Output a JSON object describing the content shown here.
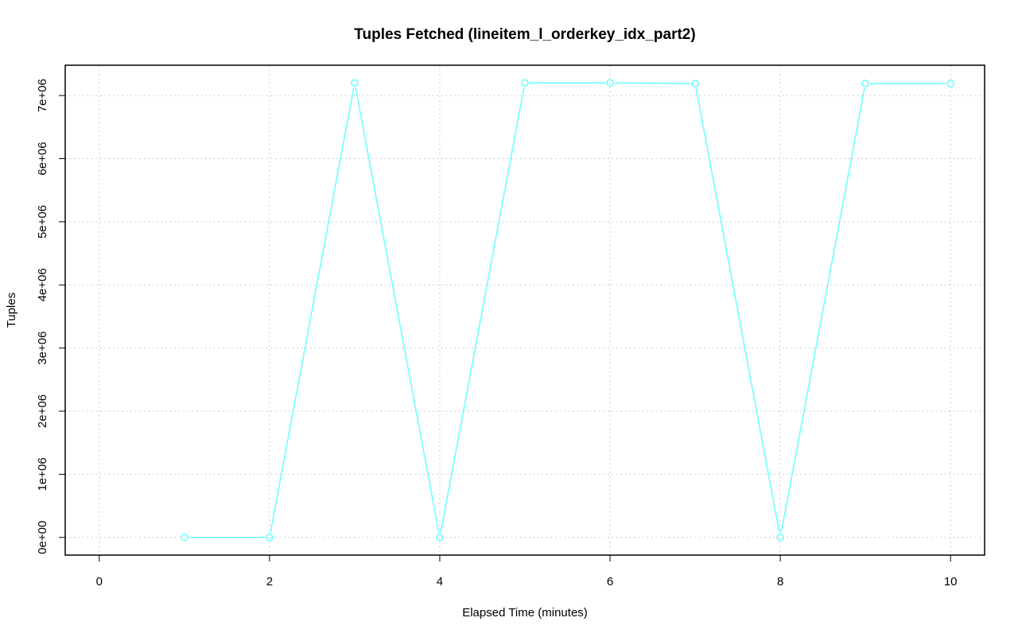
{
  "chart_data": {
    "type": "line",
    "title": "Tuples Fetched (lineitem_l_orderkey_idx_part2)",
    "xlabel": "Elapsed Time (minutes)",
    "ylabel": "Tuples",
    "xlim": [
      -0.4,
      10.4
    ],
    "ylim": [
      -280000,
      7480000
    ],
    "x_ticks": [
      0,
      2,
      4,
      6,
      8,
      10
    ],
    "x_tick_labels": [
      "0",
      "2",
      "4",
      "6",
      "8",
      "10"
    ],
    "y_ticks": [
      0,
      1000000,
      2000000,
      3000000,
      4000000,
      5000000,
      6000000,
      7000000
    ],
    "y_tick_labels": [
      "0e+00",
      "1e+06",
      "2e+06",
      "3e+06",
      "4e+06",
      "5e+06",
      "6e+06",
      "7e+06"
    ],
    "grid": true,
    "series": [
      {
        "color": "#66ffff",
        "x": [
          1,
          2,
          3,
          4,
          5,
          6,
          7,
          8,
          9,
          10
        ],
        "y": [
          0,
          0,
          7200000,
          0,
          7200000,
          7200000,
          7190000,
          0,
          7190000,
          7190000
        ]
      }
    ]
  }
}
